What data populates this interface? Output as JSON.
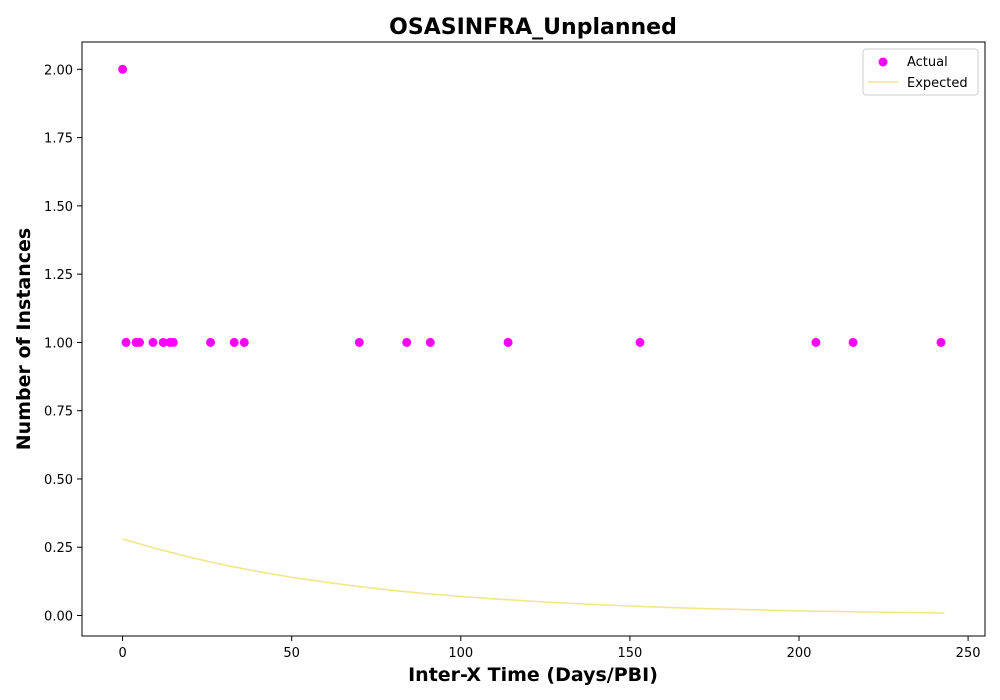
{
  "chart_data": {
    "type": "scatter",
    "title": "OSASINFRA_Unplanned",
    "xlabel": "Inter-X Time (Days/PBI)",
    "ylabel": "Number of Instances",
    "xlim": [
      -12,
      255
    ],
    "ylim": [
      -0.075,
      2.1
    ],
    "xticks": [
      0,
      50,
      100,
      150,
      200,
      250
    ],
    "yticks": [
      0.0,
      0.25,
      0.5,
      0.75,
      1.0,
      1.25,
      1.5,
      1.75,
      2.0
    ],
    "xtick_labels": [
      "0",
      "50",
      "100",
      "150",
      "200",
      "250"
    ],
    "ytick_labels": [
      "0.00",
      "0.25",
      "0.50",
      "0.75",
      "1.00",
      "1.25",
      "1.50",
      "1.75",
      "2.00"
    ],
    "legend_position": "top-right",
    "series": [
      {
        "name": "Actual",
        "kind": "scatter",
        "color": "#ff00ff",
        "points": [
          [
            0,
            2
          ],
          [
            1,
            1
          ],
          [
            4,
            1
          ],
          [
            5,
            1
          ],
          [
            9,
            1
          ],
          [
            12,
            1
          ],
          [
            14,
            1
          ],
          [
            15,
            1
          ],
          [
            26,
            1
          ],
          [
            33,
            1
          ],
          [
            36,
            1
          ],
          [
            70,
            1
          ],
          [
            84,
            1
          ],
          [
            91,
            1
          ],
          [
            114,
            1
          ],
          [
            153,
            1
          ],
          [
            205,
            1
          ],
          [
            216,
            1
          ],
          [
            242,
            1
          ]
        ]
      },
      {
        "name": "Expected",
        "kind": "line",
        "color": "#f0e68c",
        "points": [
          [
            0,
            0.28
          ],
          [
            10,
            0.245
          ],
          [
            20,
            0.213
          ],
          [
            30,
            0.185
          ],
          [
            40,
            0.161
          ],
          [
            50,
            0.14
          ],
          [
            60,
            0.122
          ],
          [
            70,
            0.106
          ],
          [
            80,
            0.092
          ],
          [
            90,
            0.08
          ],
          [
            100,
            0.07
          ],
          [
            110,
            0.061
          ],
          [
            120,
            0.053
          ],
          [
            130,
            0.046
          ],
          [
            140,
            0.04
          ],
          [
            150,
            0.035
          ],
          [
            160,
            0.03
          ],
          [
            170,
            0.026
          ],
          [
            180,
            0.023
          ],
          [
            190,
            0.02
          ],
          [
            200,
            0.017
          ],
          [
            210,
            0.015
          ],
          [
            220,
            0.013
          ],
          [
            230,
            0.011
          ],
          [
            243,
            0.009
          ]
        ]
      }
    ]
  }
}
